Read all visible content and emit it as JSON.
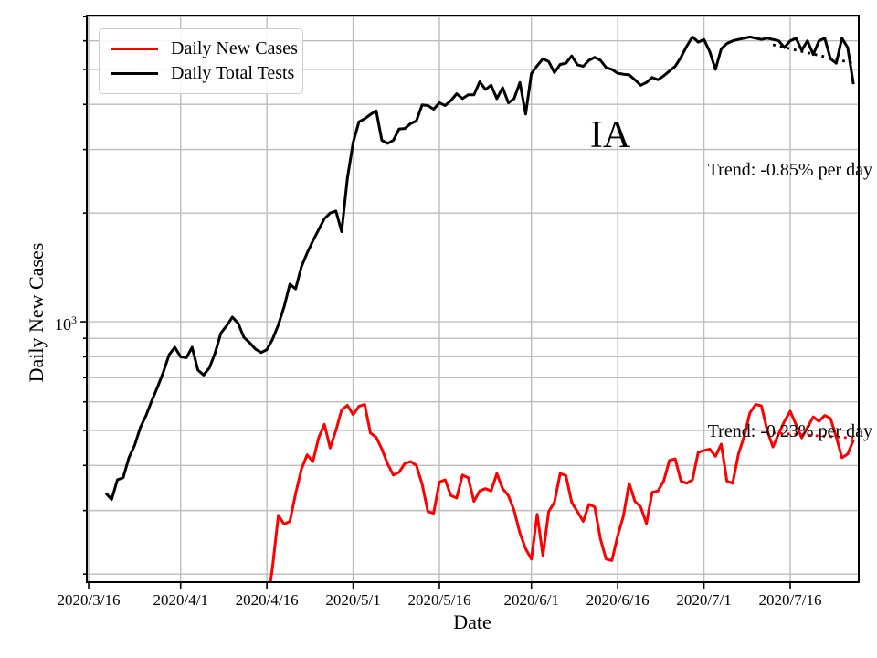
{
  "figure": {
    "state_label": "IA",
    "trend_black_text": "Trend: -0.85% per day",
    "trend_red_text": "Trend: -0.23% per day"
  },
  "legend": {
    "items": [
      {
        "label": "Daily New Cases",
        "color": "#ff0000"
      },
      {
        "label": "Daily Total Tests",
        "color": "#000000"
      }
    ]
  },
  "axes": {
    "xlabel": "Date",
    "ylabel": "Daily New Cases",
    "x_tick_labels": [
      "2020/3/16",
      "2020/4/1",
      "2020/4/16",
      "2020/5/1",
      "2020/5/16",
      "2020/6/1",
      "2020/6/16",
      "2020/7/1",
      "2020/7/16"
    ],
    "y_major_tick": {
      "base": "10",
      "exponent": "3"
    }
  },
  "colors": {
    "grid": "#bdbdbd",
    "spine": "#000000",
    "background": "#ffffff",
    "cases": "#ff0000",
    "tests": "#000000"
  },
  "chart_data": {
    "type": "line",
    "title": "IA",
    "xlabel": "Date",
    "ylabel": "Daily New Cases",
    "y_scale": "log",
    "ylim": [
      190,
      7050
    ],
    "xlim": [
      "2020/3/16",
      "2020/7/28"
    ],
    "grid": "both",
    "legend_position": "upper left",
    "x_ticks": [
      "2020/3/16",
      "2020/4/1",
      "2020/4/16",
      "2020/5/1",
      "2020/5/16",
      "2020/6/1",
      "2020/6/16",
      "2020/7/1",
      "2020/7/16"
    ],
    "y_gridlines": [
      200,
      300,
      400,
      500,
      600,
      700,
      800,
      900,
      1000,
      2000,
      3000,
      4000,
      5000,
      6000,
      7000
    ],
    "y_major_gridlines": [
      1000
    ],
    "series": [
      {
        "name": "Daily Total Tests",
        "color": "#000000",
        "frequency": "daily",
        "start_date": "2020/3/19",
        "values": [
          335,
          322,
          365,
          370,
          420,
          455,
          510,
          550,
          605,
          660,
          725,
          810,
          850,
          800,
          795,
          850,
          735,
          712,
          745,
          820,
          930,
          975,
          1030,
          990,
          905,
          875,
          840,
          822,
          837,
          895,
          980,
          1100,
          1271,
          1233,
          1420,
          1550,
          1675,
          1798,
          1930,
          2000,
          2026,
          1776,
          2500,
          3140,
          3580,
          3650,
          3750,
          3840,
          3180,
          3120,
          3180,
          3420,
          3430,
          3540,
          3600,
          3990,
          3970,
          3880,
          4040,
          3970,
          4100,
          4280,
          4150,
          4250,
          4250,
          4620,
          4400,
          4520,
          4150,
          4450,
          4040,
          4150,
          4600,
          3760,
          4870,
          5120,
          5350,
          5260,
          4900,
          5160,
          5200,
          5450,
          5150,
          5100,
          5300,
          5400,
          5300,
          5060,
          5000,
          4880,
          4850,
          4830,
          4680,
          4520,
          4600,
          4750,
          4680,
          4800,
          4950,
          5100,
          5400,
          5800,
          6150,
          5950,
          6050,
          5600,
          5000,
          5700,
          5900,
          6000,
          6050,
          6100,
          6150,
          6100,
          6050,
          6100,
          6050,
          6000,
          5750,
          6000,
          6100,
          5650,
          6000,
          5500,
          6000,
          6100,
          5350,
          5200,
          6100,
          5750,
          4550
        ]
      },
      {
        "name": "Daily New Cases",
        "color": "#ff0000",
        "frequency": "daily",
        "start_date": "2020/4/16",
        "values": [
          160,
          210,
          291,
          275,
          280,
          334,
          390,
          428,
          410,
          477,
          520,
          447,
          500,
          570,
          587,
          553,
          583,
          590,
          492,
          479,
          444,
          404,
          376,
          383,
          405,
          410,
          400,
          355,
          298,
          295,
          360,
          365,
          330,
          325,
          376,
          370,
          318,
          340,
          345,
          340,
          380,
          345,
          330,
          300,
          260,
          235,
          220,
          293,
          225,
          298,
          316,
          380,
          375,
          316,
          298,
          280,
          312,
          307,
          250,
          220,
          218,
          255,
          290,
          357,
          318,
          307,
          276,
          337,
          340,
          362,
          413,
          417,
          362,
          357,
          365,
          435,
          440,
          444,
          424,
          458,
          362,
          357,
          430,
          482,
          560,
          590,
          585,
          500,
          450,
          490,
          530,
          565,
          520,
          477,
          510,
          545,
          530,
          550,
          540,
          480,
          420,
          430,
          470
        ]
      }
    ],
    "trend_lines": [
      {
        "series": "Daily Total Tests",
        "label": "Trend: -0.85% per day",
        "rate_pct_per_day": -0.85,
        "start_date": "2020/7/13",
        "end_date": "2020/7/27",
        "start_value": 5850,
        "end_value": 5200,
        "color": "#000000",
        "style": "dotted"
      },
      {
        "series": "Daily New Cases",
        "label": "Trend: -0.23% per day",
        "rate_pct_per_day": -0.23,
        "start_date": "2020/7/13",
        "end_date": "2020/7/27",
        "start_value": 492,
        "end_value": 476,
        "color": "#ff0000",
        "style": "dotted"
      }
    ]
  }
}
